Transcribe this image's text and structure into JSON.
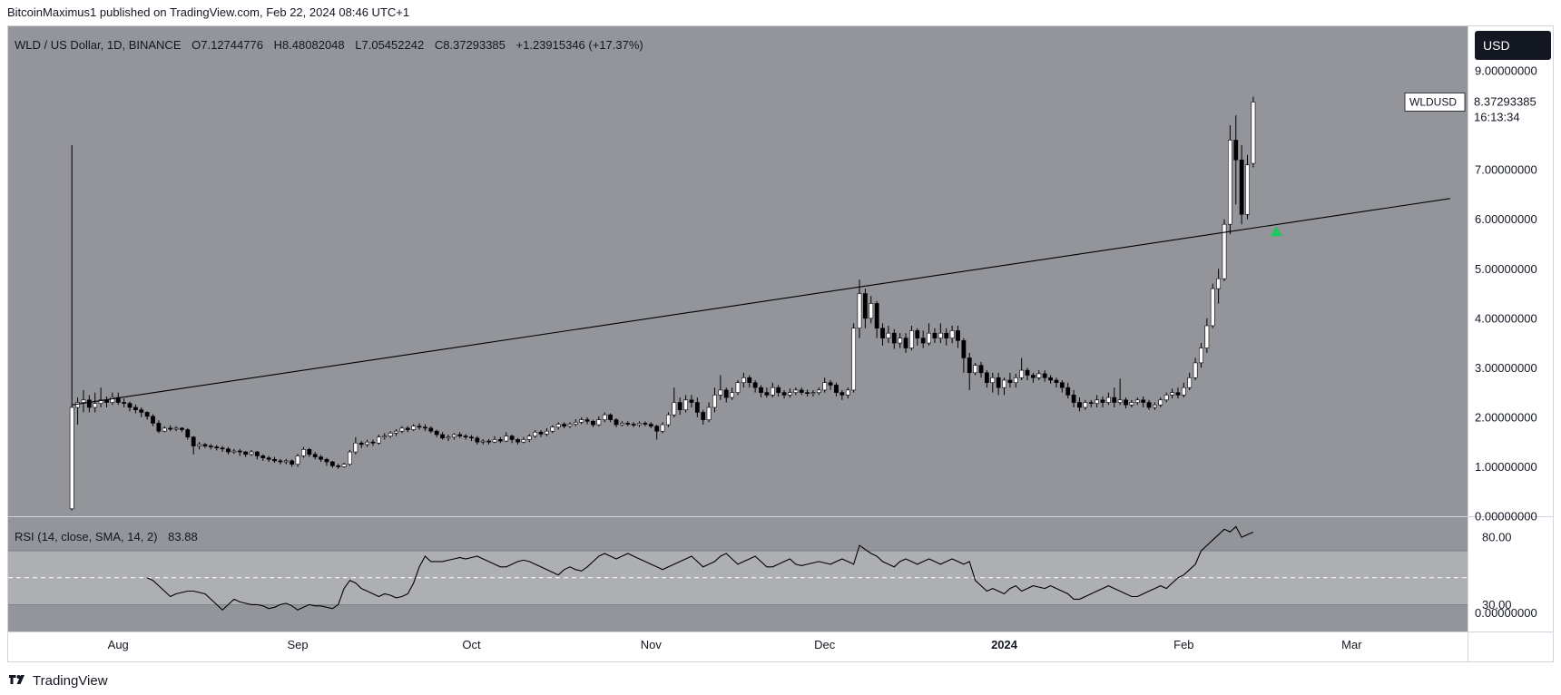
{
  "header": {
    "published_line": "BitcoinMaximus1 published on TradingView.com, Feb 22, 2024 08:46 UTC+1"
  },
  "footer": {
    "brand": "TradingView"
  },
  "colors": {
    "pane_bg": "#93959a",
    "rsi_band": "#c4c5c9",
    "candle_up": "#ffffff",
    "candle_down": "#000000",
    "signal_arrow": "#22c55e",
    "usd_badge": "#131722"
  },
  "chart_data": {
    "type": "candlestick",
    "title": "WLD / US Dollar, 1D, BINANCE",
    "legend": {
      "symbol": "WLD / US Dollar, 1D, BINANCE",
      "o_label": "O",
      "o_value": "7.12744776",
      "h_label": "H",
      "h_value": "8.48082048",
      "l_label": "L",
      "l_value": "7.05452242",
      "c_label": "C",
      "c_value": "8.37293385",
      "change": "+1.23915346 (+17.37%)"
    },
    "currency_badge": "USD",
    "last_price": {
      "symbol": "WLDUSD",
      "value": "8.37293385",
      "countdown": "16:13:34",
      "price": 8.37
    },
    "ylim": [
      0,
      9.9
    ],
    "y_ticks": [
      {
        "value": 0,
        "label": "0.00000000"
      },
      {
        "value": 1,
        "label": "1.00000000"
      },
      {
        "value": 2,
        "label": "2.00000000"
      },
      {
        "value": 3,
        "label": "3.00000000"
      },
      {
        "value": 4,
        "label": "4.00000000"
      },
      {
        "value": 5,
        "label": "5.00000000"
      },
      {
        "value": 6,
        "label": "6.00000000"
      },
      {
        "value": 7,
        "label": "7.00000000"
      },
      {
        "value": 9,
        "label": "9.00000000"
      }
    ],
    "x_ticks": [
      {
        "date": "2023-08-01",
        "label": "Aug",
        "bold": false
      },
      {
        "date": "2023-09-01",
        "label": "Sep",
        "bold": false
      },
      {
        "date": "2023-10-01",
        "label": "Oct",
        "bold": false
      },
      {
        "date": "2023-11-01",
        "label": "Nov",
        "bold": false
      },
      {
        "date": "2023-12-01",
        "label": "Dec",
        "bold": false
      },
      {
        "date": "2024-01-01",
        "label": "2024",
        "bold": true
      },
      {
        "date": "2024-02-01",
        "label": "Feb",
        "bold": false
      },
      {
        "date": "2024-03-01",
        "label": "Mar",
        "bold": false
      }
    ],
    "x_range": [
      "2023-07-13",
      "2024-03-21"
    ],
    "start_date": "2023-07-24",
    "candles": [
      [
        0.15,
        2.2,
        0.12,
        7.5
      ],
      [
        2.2,
        2.3,
        1.85,
        2.4
      ],
      [
        2.3,
        2.35,
        2.1,
        2.55
      ],
      [
        2.35,
        2.2,
        2.1,
        2.45
      ],
      [
        2.2,
        2.28,
        2.1,
        2.5
      ],
      [
        2.28,
        2.35,
        2.2,
        2.6
      ],
      [
        2.35,
        2.3,
        2.2,
        2.42
      ],
      [
        2.3,
        2.4,
        2.25,
        2.5
      ],
      [
        2.4,
        2.3,
        2.25,
        2.5
      ],
      [
        2.3,
        2.28,
        2.2,
        2.38
      ],
      [
        2.28,
        2.2,
        2.12,
        2.32
      ],
      [
        2.2,
        2.15,
        2.08,
        2.26
      ],
      [
        2.15,
        2.1,
        2.0,
        2.2
      ],
      [
        2.1,
        2.02,
        1.95,
        2.12
      ],
      [
        2.02,
        1.88,
        1.82,
        2.06
      ],
      [
        1.88,
        1.72,
        1.68,
        1.94
      ],
      [
        1.72,
        1.78,
        1.7,
        1.82
      ],
      [
        1.78,
        1.76,
        1.72,
        1.84
      ],
      [
        1.76,
        1.78,
        1.72,
        1.82
      ],
      [
        1.78,
        1.75,
        1.7,
        1.8
      ],
      [
        1.75,
        1.6,
        1.55,
        1.78
      ],
      [
        1.6,
        1.42,
        1.25,
        1.62
      ],
      [
        1.42,
        1.45,
        1.35,
        1.5
      ],
      [
        1.45,
        1.42,
        1.38,
        1.48
      ],
      [
        1.42,
        1.4,
        1.35,
        1.46
      ],
      [
        1.4,
        1.38,
        1.33,
        1.44
      ],
      [
        1.38,
        1.36,
        1.3,
        1.42
      ],
      [
        1.36,
        1.3,
        1.25,
        1.4
      ],
      [
        1.3,
        1.32,
        1.26,
        1.36
      ],
      [
        1.32,
        1.3,
        1.22,
        1.36
      ],
      [
        1.3,
        1.25,
        1.2,
        1.32
      ],
      [
        1.25,
        1.3,
        1.22,
        1.34
      ],
      [
        1.3,
        1.22,
        1.15,
        1.32
      ],
      [
        1.22,
        1.18,
        1.12,
        1.25
      ],
      [
        1.18,
        1.15,
        1.1,
        1.22
      ],
      [
        1.15,
        1.12,
        1.08,
        1.2
      ],
      [
        1.12,
        1.1,
        1.05,
        1.16
      ],
      [
        1.1,
        1.12,
        1.05,
        1.16
      ],
      [
        1.12,
        1.05,
        1.0,
        1.15
      ],
      [
        1.05,
        1.22,
        1.0,
        1.26
      ],
      [
        1.22,
        1.35,
        1.18,
        1.4
      ],
      [
        1.35,
        1.25,
        1.2,
        1.38
      ],
      [
        1.25,
        1.2,
        1.15,
        1.3
      ],
      [
        1.2,
        1.15,
        1.1,
        1.24
      ],
      [
        1.15,
        1.1,
        1.02,
        1.18
      ],
      [
        1.1,
        1.02,
        0.98,
        1.12
      ],
      [
        1.02,
        1.0,
        0.96,
        1.06
      ],
      [
        1.0,
        1.05,
        0.98,
        1.08
      ],
      [
        1.05,
        1.3,
        1.02,
        1.34
      ],
      [
        1.3,
        1.48,
        1.25,
        1.6
      ],
      [
        1.48,
        1.45,
        1.38,
        1.52
      ],
      [
        1.45,
        1.5,
        1.4,
        1.55
      ],
      [
        1.5,
        1.48,
        1.42,
        1.55
      ],
      [
        1.48,
        1.6,
        1.45,
        1.65
      ],
      [
        1.6,
        1.62,
        1.55,
        1.68
      ],
      [
        1.62,
        1.68,
        1.58,
        1.72
      ],
      [
        1.68,
        1.72,
        1.62,
        1.76
      ],
      [
        1.72,
        1.78,
        1.68,
        1.82
      ],
      [
        1.78,
        1.75,
        1.7,
        1.82
      ],
      [
        1.75,
        1.82,
        1.72,
        1.86
      ],
      [
        1.82,
        1.8,
        1.75,
        1.88
      ],
      [
        1.8,
        1.78,
        1.72,
        1.86
      ],
      [
        1.78,
        1.72,
        1.68,
        1.82
      ],
      [
        1.72,
        1.65,
        1.6,
        1.75
      ],
      [
        1.65,
        1.58,
        1.55,
        1.7
      ],
      [
        1.58,
        1.6,
        1.52,
        1.65
      ],
      [
        1.6,
        1.65,
        1.55,
        1.68
      ],
      [
        1.65,
        1.62,
        1.58,
        1.7
      ],
      [
        1.62,
        1.6,
        1.55,
        1.66
      ],
      [
        1.6,
        1.58,
        1.52,
        1.64
      ],
      [
        1.58,
        1.5,
        1.45,
        1.62
      ],
      [
        1.5,
        1.52,
        1.45,
        1.56
      ],
      [
        1.52,
        1.5,
        1.45,
        1.56
      ],
      [
        1.5,
        1.55,
        1.48,
        1.62
      ],
      [
        1.55,
        1.52,
        1.48,
        1.6
      ],
      [
        1.52,
        1.62,
        1.5,
        1.7
      ],
      [
        1.62,
        1.55,
        1.48,
        1.65
      ],
      [
        1.55,
        1.5,
        1.45,
        1.58
      ],
      [
        1.5,
        1.55,
        1.48,
        1.6
      ],
      [
        1.55,
        1.62,
        1.5,
        1.66
      ],
      [
        1.62,
        1.7,
        1.58,
        1.74
      ],
      [
        1.7,
        1.66,
        1.6,
        1.74
      ],
      [
        1.66,
        1.72,
        1.62,
        1.78
      ],
      [
        1.72,
        1.8,
        1.68,
        1.84
      ],
      [
        1.8,
        1.86,
        1.75,
        1.9
      ],
      [
        1.86,
        1.82,
        1.78,
        1.9
      ],
      [
        1.82,
        1.86,
        1.78,
        1.9
      ],
      [
        1.86,
        1.9,
        1.82,
        1.96
      ],
      [
        1.9,
        1.95,
        1.86,
        2.0
      ],
      [
        1.95,
        1.92,
        1.86,
        2.0
      ],
      [
        1.92,
        1.85,
        1.8,
        1.95
      ],
      [
        1.85,
        1.95,
        1.82,
        2.02
      ],
      [
        1.95,
        2.05,
        1.9,
        2.1
      ],
      [
        2.05,
        1.95,
        1.9,
        2.08
      ],
      [
        1.95,
        1.85,
        1.8,
        1.98
      ],
      [
        1.85,
        1.88,
        1.82,
        1.92
      ],
      [
        1.88,
        1.86,
        1.82,
        1.92
      ],
      [
        1.86,
        1.85,
        1.8,
        1.9
      ],
      [
        1.85,
        1.88,
        1.8,
        1.92
      ],
      [
        1.88,
        1.86,
        1.82,
        1.92
      ],
      [
        1.86,
        1.82,
        1.78,
        1.9
      ],
      [
        1.82,
        1.72,
        1.55,
        1.85
      ],
      [
        1.72,
        1.85,
        1.68,
        1.9
      ],
      [
        1.85,
        2.05,
        1.8,
        2.1
      ],
      [
        2.05,
        2.3,
        2.0,
        2.6
      ],
      [
        2.3,
        2.15,
        2.05,
        2.4
      ],
      [
        2.15,
        2.35,
        2.1,
        2.45
      ],
      [
        2.35,
        2.3,
        2.2,
        2.45
      ],
      [
        2.3,
        2.1,
        2.0,
        2.4
      ],
      [
        2.1,
        1.95,
        1.85,
        2.15
      ],
      [
        1.95,
        2.2,
        1.9,
        2.3
      ],
      [
        2.2,
        2.45,
        2.1,
        2.6
      ],
      [
        2.45,
        2.55,
        2.35,
        2.85
      ],
      [
        2.55,
        2.4,
        2.3,
        2.6
      ],
      [
        2.4,
        2.5,
        2.35,
        2.6
      ],
      [
        2.5,
        2.7,
        2.45,
        2.75
      ],
      [
        2.7,
        2.8,
        2.6,
        2.9
      ],
      [
        2.8,
        2.7,
        2.6,
        2.85
      ],
      [
        2.7,
        2.6,
        2.5,
        2.75
      ],
      [
        2.6,
        2.5,
        2.4,
        2.65
      ],
      [
        2.5,
        2.45,
        2.4,
        2.6
      ],
      [
        2.45,
        2.6,
        2.4,
        2.7
      ],
      [
        2.6,
        2.5,
        2.42,
        2.65
      ],
      [
        2.5,
        2.45,
        2.38,
        2.55
      ],
      [
        2.45,
        2.5,
        2.4,
        2.58
      ],
      [
        2.5,
        2.55,
        2.45,
        2.6
      ],
      [
        2.55,
        2.5,
        2.45,
        2.6
      ],
      [
        2.5,
        2.48,
        2.42,
        2.56
      ],
      [
        2.48,
        2.5,
        2.42,
        2.55
      ],
      [
        2.5,
        2.55,
        2.45,
        2.6
      ],
      [
        2.55,
        2.7,
        2.5,
        2.8
      ],
      [
        2.7,
        2.65,
        2.55,
        2.75
      ],
      [
        2.65,
        2.5,
        2.42,
        2.7
      ],
      [
        2.5,
        2.45,
        2.35,
        2.55
      ],
      [
        2.45,
        2.55,
        2.38,
        2.6
      ],
      [
        2.55,
        3.8,
        2.5,
        3.9
      ],
      [
        3.8,
        4.5,
        3.6,
        4.78
      ],
      [
        4.5,
        4.0,
        3.8,
        4.6
      ],
      [
        4.0,
        4.3,
        3.9,
        4.45
      ],
      [
        4.3,
        3.8,
        3.6,
        4.35
      ],
      [
        3.8,
        3.6,
        3.45,
        3.9
      ],
      [
        3.6,
        3.7,
        3.5,
        3.85
      ],
      [
        3.7,
        3.5,
        3.38,
        3.78
      ],
      [
        3.5,
        3.6,
        3.4,
        3.7
      ],
      [
        3.6,
        3.4,
        3.3,
        3.7
      ],
      [
        3.4,
        3.75,
        3.35,
        3.85
      ],
      [
        3.75,
        3.6,
        3.45,
        3.8
      ],
      [
        3.6,
        3.5,
        3.4,
        3.75
      ],
      [
        3.5,
        3.7,
        3.45,
        3.9
      ],
      [
        3.7,
        3.6,
        3.5,
        3.8
      ],
      [
        3.6,
        3.7,
        3.5,
        3.9
      ],
      [
        3.7,
        3.6,
        3.45,
        3.8
      ],
      [
        3.6,
        3.75,
        3.5,
        3.85
      ],
      [
        3.75,
        3.55,
        3.4,
        3.85
      ],
      [
        3.55,
        3.2,
        2.9,
        3.6
      ],
      [
        3.2,
        2.9,
        2.55,
        3.3
      ],
      [
        2.9,
        3.05,
        2.85,
        3.1
      ],
      [
        3.05,
        2.9,
        2.8,
        3.12
      ],
      [
        2.9,
        2.7,
        2.6,
        2.95
      ],
      [
        2.7,
        2.8,
        2.5,
        2.9
      ],
      [
        2.8,
        2.6,
        2.45,
        2.9
      ],
      [
        2.6,
        2.75,
        2.45,
        2.8
      ],
      [
        2.75,
        2.7,
        2.6,
        2.9
      ],
      [
        2.7,
        2.8,
        2.6,
        2.88
      ],
      [
        2.8,
        2.95,
        2.75,
        3.2
      ],
      [
        2.95,
        2.85,
        2.75,
        3.0
      ],
      [
        2.85,
        2.8,
        2.7,
        2.9
      ],
      [
        2.8,
        2.88,
        2.75,
        2.95
      ],
      [
        2.88,
        2.8,
        2.72,
        2.95
      ],
      [
        2.8,
        2.75,
        2.68,
        2.85
      ],
      [
        2.75,
        2.7,
        2.6,
        2.8
      ],
      [
        2.7,
        2.6,
        2.5,
        2.75
      ],
      [
        2.6,
        2.45,
        2.38,
        2.7
      ],
      [
        2.45,
        2.3,
        2.2,
        2.55
      ],
      [
        2.3,
        2.2,
        2.12,
        2.4
      ],
      [
        2.2,
        2.3,
        2.15,
        2.35
      ],
      [
        2.3,
        2.28,
        2.2,
        2.35
      ],
      [
        2.28,
        2.35,
        2.2,
        2.45
      ],
      [
        2.35,
        2.3,
        2.2,
        2.42
      ],
      [
        2.3,
        2.4,
        2.25,
        2.5
      ],
      [
        2.4,
        2.3,
        2.2,
        2.6
      ],
      [
        2.3,
        2.35,
        2.25,
        2.78
      ],
      [
        2.35,
        2.25,
        2.18,
        2.4
      ],
      [
        2.25,
        2.3,
        2.2,
        2.35
      ],
      [
        2.3,
        2.35,
        2.25,
        2.4
      ],
      [
        2.35,
        2.3,
        2.2,
        2.42
      ],
      [
        2.3,
        2.2,
        2.15,
        2.35
      ],
      [
        2.2,
        2.25,
        2.15,
        2.3
      ],
      [
        2.25,
        2.35,
        2.2,
        2.4
      ],
      [
        2.35,
        2.45,
        2.3,
        2.5
      ],
      [
        2.45,
        2.5,
        2.38,
        2.58
      ],
      [
        2.5,
        2.45,
        2.38,
        2.6
      ],
      [
        2.45,
        2.6,
        2.4,
        2.7
      ],
      [
        2.6,
        2.8,
        2.55,
        2.9
      ],
      [
        2.8,
        3.1,
        2.75,
        3.2
      ],
      [
        3.1,
        3.4,
        3.0,
        3.5
      ],
      [
        3.4,
        3.85,
        3.3,
        4.0
      ],
      [
        3.85,
        4.6,
        3.8,
        4.7
      ],
      [
        4.6,
        4.8,
        4.3,
        5.0
      ],
      [
        4.8,
        5.9,
        4.75,
        6.0
      ],
      [
        5.9,
        7.6,
        5.7,
        7.9
      ],
      [
        7.6,
        7.2,
        6.3,
        8.1
      ],
      [
        7.2,
        6.1,
        5.9,
        7.5
      ],
      [
        6.1,
        7.1,
        6.0,
        7.3
      ],
      [
        7.13,
        8.37,
        7.05,
        8.48
      ]
    ],
    "trendline": {
      "start_date": "2023-07-24",
      "start_value": 2.25,
      "end_date": "2024-03-18",
      "end_value": 6.42
    },
    "breakout_arrow": {
      "date": "2024-02-17",
      "value": 5.75
    },
    "rsi": {
      "legend_label": "RSI (14, close, SMA, 14, 2)",
      "last_value": "83.88",
      "ylim": [
        10,
        95
      ],
      "upper_band": 70,
      "lower_band": 30,
      "mid": 50,
      "ticks": [
        {
          "value": 80,
          "label": "80.00"
        },
        {
          "value": 30,
          "label": "30.00"
        }
      ],
      "zero_label": "0.00000000",
      "start_date": "2023-08-06",
      "values": [
        50,
        48,
        44,
        40,
        36,
        38,
        39,
        40,
        40,
        39,
        38,
        34,
        30,
        26,
        30,
        34,
        32,
        31,
        30,
        30,
        29,
        27,
        28,
        30,
        31,
        29,
        26,
        28,
        30,
        29,
        29,
        28,
        27,
        30,
        42,
        48,
        46,
        42,
        40,
        38,
        36,
        38,
        37,
        35,
        36,
        38,
        46,
        58,
        66,
        62,
        62,
        62,
        63,
        64,
        65,
        64,
        65,
        66,
        64,
        62,
        60,
        58,
        58,
        60,
        62,
        63,
        62,
        60,
        58,
        56,
        54,
        52,
        56,
        58,
        56,
        55,
        58,
        62,
        66,
        68,
        66,
        64,
        66,
        68,
        66,
        64,
        62,
        60,
        58,
        56,
        58,
        60,
        62,
        64,
        66,
        62,
        58,
        60,
        62,
        66,
        68,
        64,
        60,
        62,
        64,
        66,
        62,
        58,
        58,
        60,
        62,
        64,
        60,
        59,
        60,
        61,
        62,
        61,
        60,
        62,
        64,
        62,
        60,
        74,
        71,
        68,
        66,
        62,
        60,
        58,
        62,
        64,
        62,
        60,
        62,
        64,
        62,
        60,
        62,
        64,
        62,
        60,
        62,
        48,
        44,
        40,
        42,
        40,
        38,
        42,
        44,
        40,
        42,
        44,
        43,
        42,
        44,
        42,
        40,
        38,
        34,
        34,
        36,
        38,
        40,
        42,
        44,
        42,
        40,
        38,
        36,
        36,
        38,
        40,
        42,
        44,
        42,
        46,
        50,
        52,
        56,
        60,
        70,
        74,
        78,
        82,
        86,
        84,
        88,
        80,
        82,
        83.88
      ]
    }
  }
}
